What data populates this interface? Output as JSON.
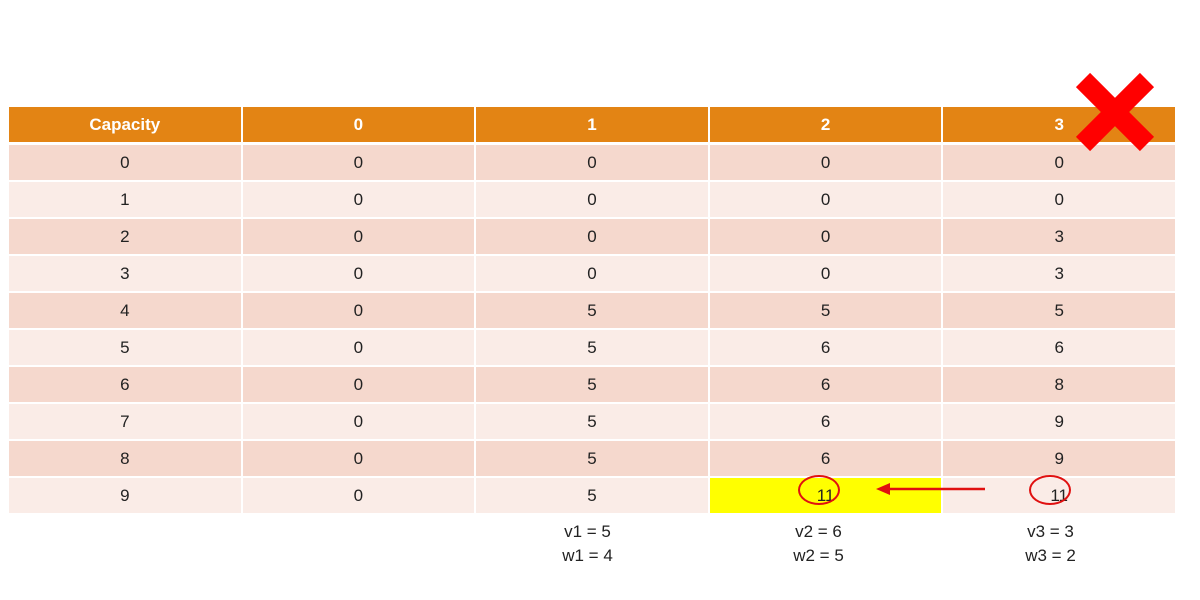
{
  "table": {
    "headers": [
      "Capacity",
      "0",
      "1",
      "2",
      "3"
    ],
    "rows": [
      [
        "0",
        "0",
        "0",
        "0",
        "0"
      ],
      [
        "1",
        "0",
        "0",
        "0",
        "0"
      ],
      [
        "2",
        "0",
        "0",
        "0",
        "3"
      ],
      [
        "3",
        "0",
        "0",
        "0",
        "3"
      ],
      [
        "4",
        "0",
        "5",
        "5",
        "5"
      ],
      [
        "5",
        "0",
        "5",
        "6",
        "6"
      ],
      [
        "6",
        "0",
        "5",
        "6",
        "8"
      ],
      [
        "7",
        "0",
        "5",
        "6",
        "9"
      ],
      [
        "8",
        "0",
        "5",
        "6",
        "9"
      ],
      [
        "9",
        "0",
        "5",
        "11",
        "11"
      ]
    ],
    "highlighted_cell": {
      "row": 9,
      "col": 3
    }
  },
  "items": [
    {
      "value_label": "v1 = 5",
      "weight_label": "w1 = 4"
    },
    {
      "value_label": "v2 = 6",
      "weight_label": "w2 = 5"
    },
    {
      "value_label": "v3 = 3",
      "weight_label": "w3 = 2"
    }
  ],
  "annotations": {
    "cross_icon": "red-x-icon",
    "arrow_icon": "left-arrow-icon",
    "accent_color": "#e38414",
    "highlight_color": "#ffff00",
    "mark_color": "#e01010"
  }
}
